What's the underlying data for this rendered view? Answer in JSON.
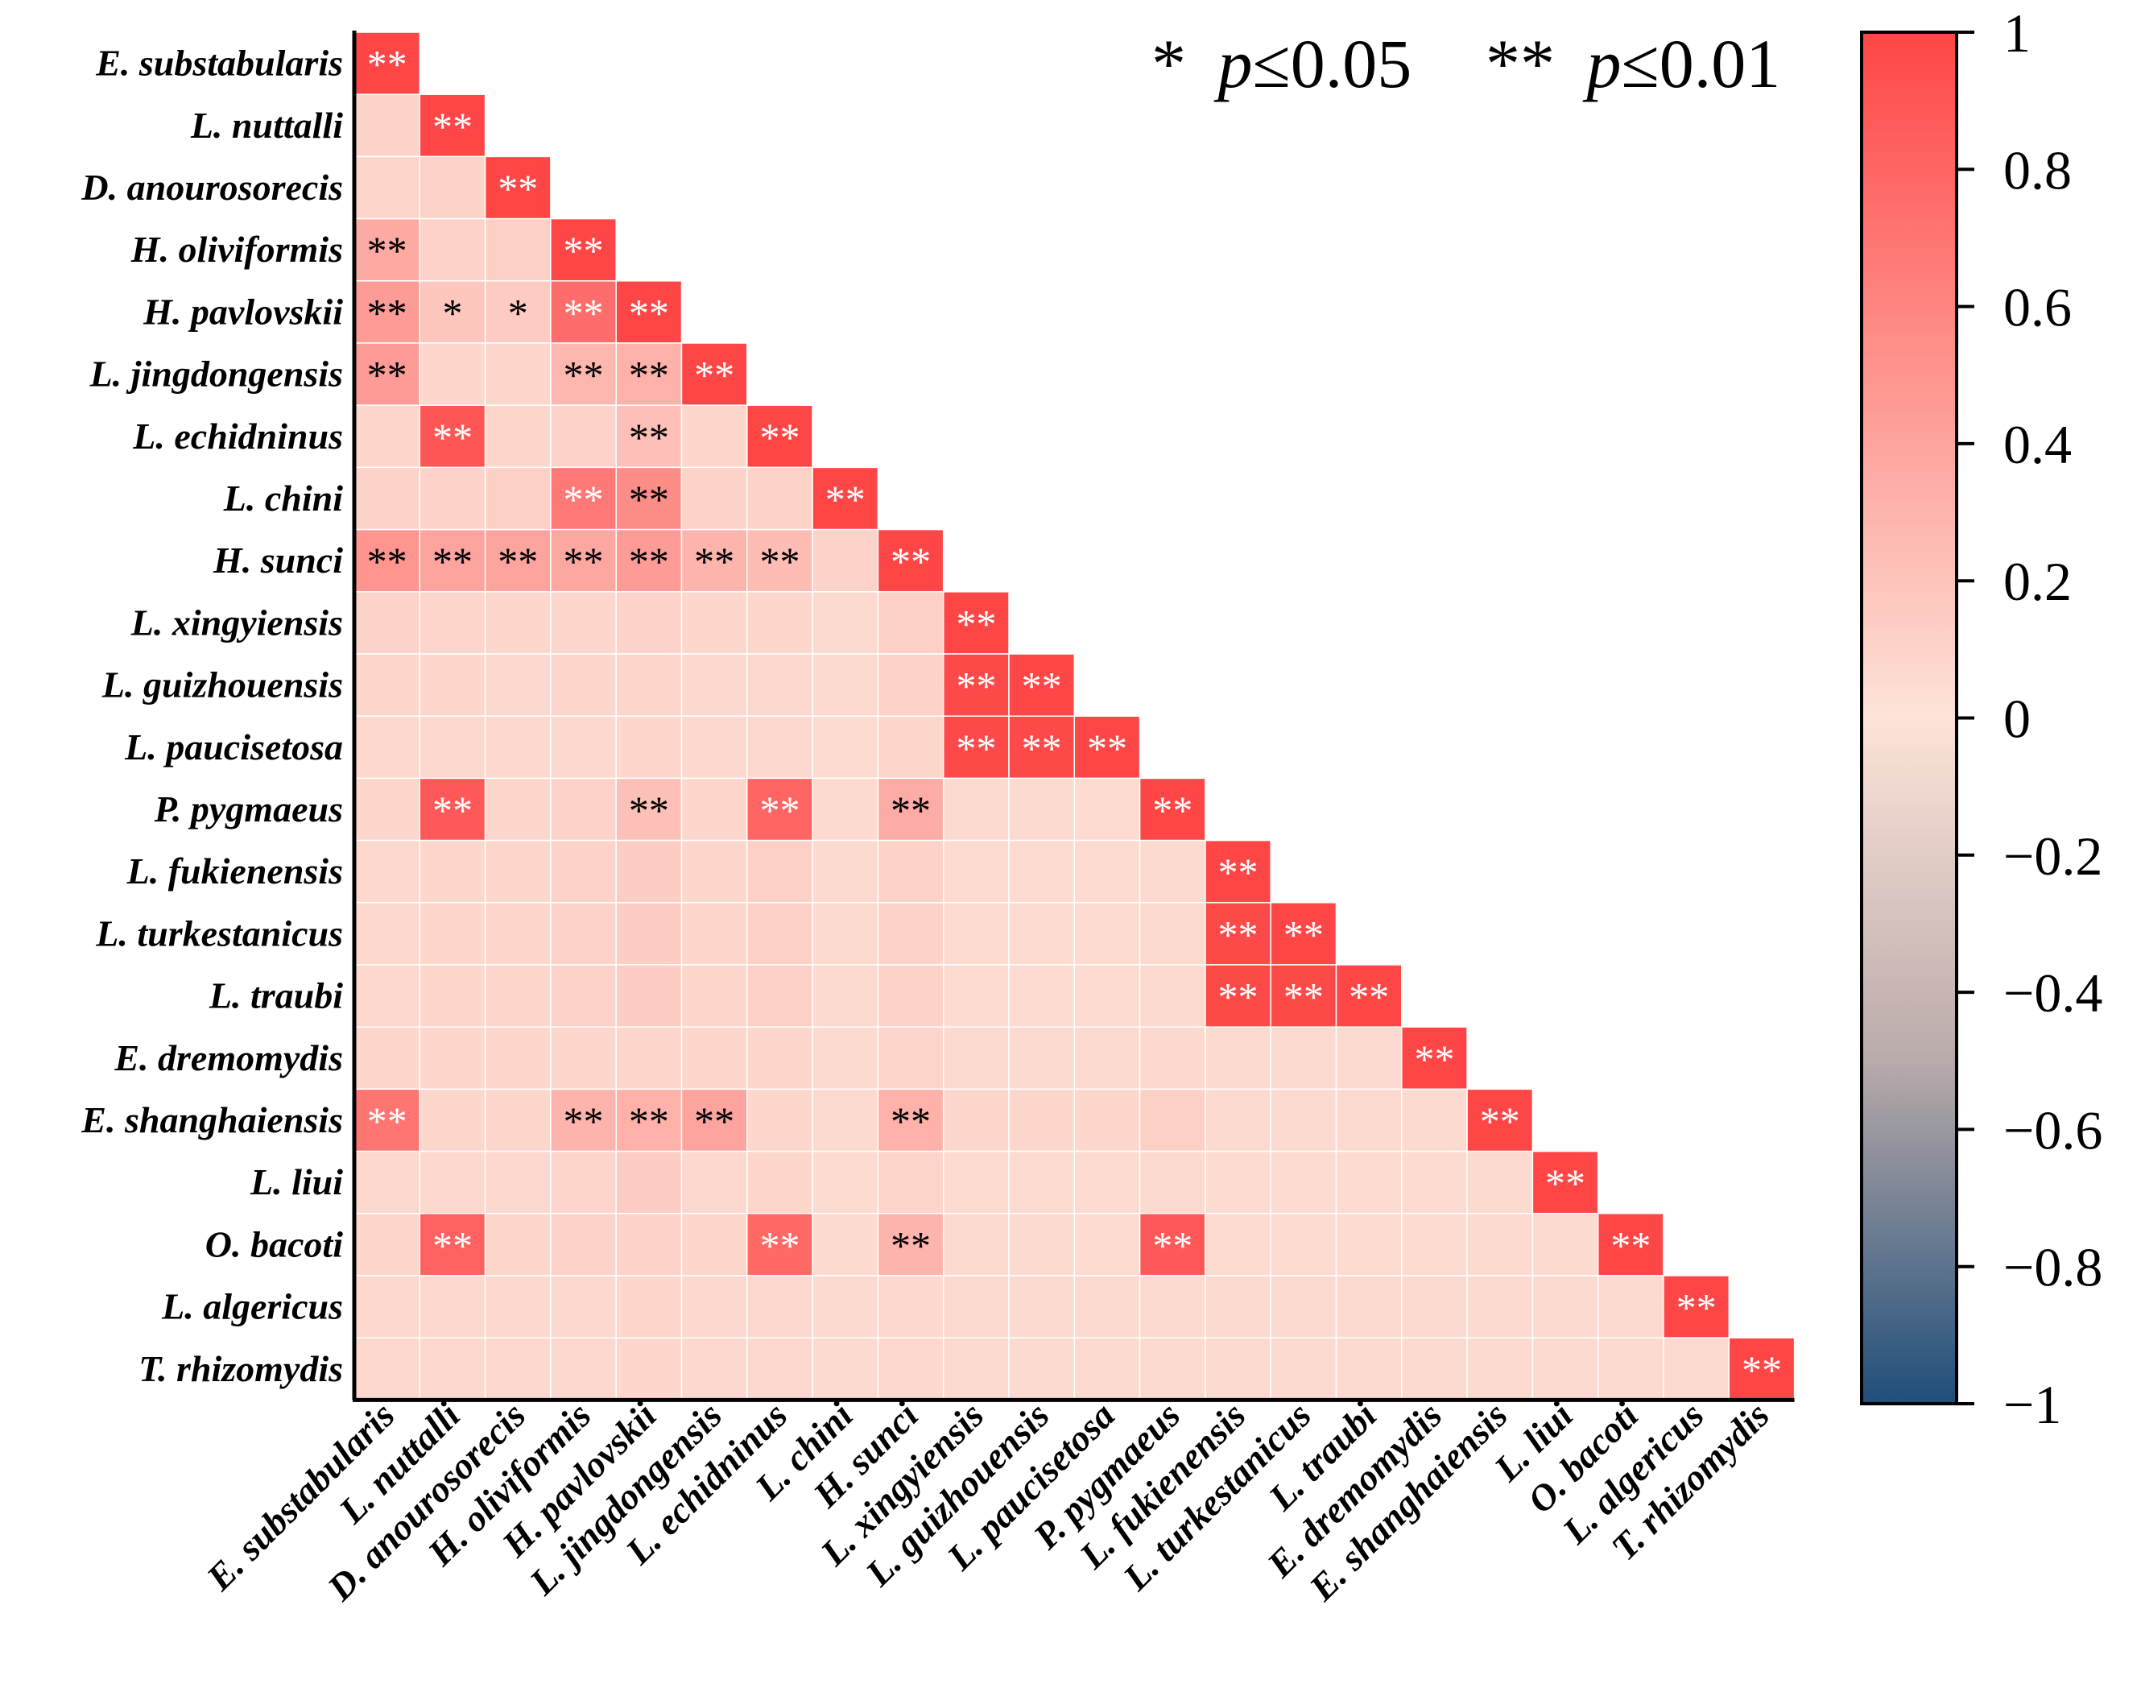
{
  "chart_data": {
    "type": "heatmap",
    "shape": "lower-triangle",
    "title": "",
    "labels": [
      "E. substabularis",
      "L. nuttalli",
      "D. anourosorecis",
      "H. oliviformis",
      "H. pavlovskii",
      "L. jingdongensis",
      "L. echidninus",
      "L. chini",
      "H. sunci",
      "L. xingyiensis",
      "L. guizhouensis",
      "L. paucisetosa",
      "P. pygmaeus",
      "L. fukienensis",
      "L. turkestanicus",
      "L. traubi",
      "E. dremomydis",
      "E. shanghaiensis",
      "L. liui",
      "O. bacoti",
      "L. algericus",
      "T. rhizomydis"
    ],
    "matrix": [
      [
        1.0
      ],
      [
        0.1,
        1.0
      ],
      [
        0.09,
        0.1,
        1.0
      ],
      [
        0.36,
        0.1,
        0.12,
        1.0
      ],
      [
        0.45,
        0.18,
        0.15,
        0.75,
        1.0
      ],
      [
        0.45,
        0.08,
        0.08,
        0.28,
        0.32,
        1.0
      ],
      [
        0.08,
        0.9,
        0.08,
        0.1,
        0.22,
        0.08,
        1.0
      ],
      [
        0.1,
        0.1,
        0.12,
        0.68,
        0.55,
        0.1,
        0.1,
        1.0
      ],
      [
        0.5,
        0.4,
        0.4,
        0.38,
        0.45,
        0.3,
        0.25,
        0.1,
        1.0
      ],
      [
        0.1,
        0.09,
        0.08,
        0.08,
        0.1,
        0.08,
        0.08,
        0.06,
        0.12,
        1.0
      ],
      [
        0.08,
        0.08,
        0.07,
        0.08,
        0.09,
        0.07,
        0.07,
        0.06,
        0.1,
        0.98,
        1.0
      ],
      [
        0.07,
        0.07,
        0.07,
        0.07,
        0.08,
        0.07,
        0.07,
        0.05,
        0.08,
        0.98,
        0.98,
        1.0
      ],
      [
        0.08,
        0.88,
        0.08,
        0.1,
        0.22,
        0.08,
        0.8,
        0.06,
        0.35,
        0.06,
        0.06,
        0.05,
        1.0
      ],
      [
        0.07,
        0.08,
        0.08,
        0.1,
        0.14,
        0.08,
        0.12,
        0.06,
        0.1,
        0.05,
        0.05,
        0.05,
        0.06,
        1.0
      ],
      [
        0.07,
        0.08,
        0.08,
        0.1,
        0.14,
        0.08,
        0.12,
        0.06,
        0.1,
        0.05,
        0.05,
        0.05,
        0.06,
        0.98,
        1.0
      ],
      [
        0.07,
        0.08,
        0.08,
        0.1,
        0.14,
        0.08,
        0.12,
        0.06,
        0.1,
        0.05,
        0.05,
        0.05,
        0.06,
        0.98,
        0.98,
        1.0
      ],
      [
        0.08,
        0.08,
        0.08,
        0.08,
        0.09,
        0.08,
        0.08,
        0.06,
        0.09,
        0.06,
        0.06,
        0.06,
        0.07,
        0.06,
        0.06,
        0.06,
        1.0
      ],
      [
        0.7,
        0.08,
        0.08,
        0.3,
        0.32,
        0.4,
        0.08,
        0.06,
        0.32,
        0.08,
        0.08,
        0.08,
        0.12,
        0.06,
        0.06,
        0.06,
        0.06,
        1.0
      ],
      [
        0.07,
        0.07,
        0.07,
        0.09,
        0.14,
        0.07,
        0.08,
        0.05,
        0.09,
        0.05,
        0.05,
        0.05,
        0.06,
        0.05,
        0.05,
        0.05,
        0.05,
        0.06,
        1.0
      ],
      [
        0.08,
        0.82,
        0.08,
        0.1,
        0.1,
        0.08,
        0.78,
        0.06,
        0.3,
        0.06,
        0.06,
        0.05,
        0.88,
        0.05,
        0.05,
        0.05,
        0.05,
        0.06,
        0.06,
        1.0
      ],
      [
        0.07,
        0.07,
        0.07,
        0.07,
        0.08,
        0.07,
        0.07,
        0.06,
        0.07,
        0.06,
        0.06,
        0.06,
        0.06,
        0.06,
        0.06,
        0.06,
        0.06,
        0.06,
        0.06,
        0.06,
        1.0
      ],
      [
        0.07,
        0.07,
        0.07,
        0.07,
        0.08,
        0.07,
        0.07,
        0.06,
        0.07,
        0.06,
        0.06,
        0.06,
        0.06,
        0.06,
        0.06,
        0.06,
        0.06,
        0.06,
        0.06,
        0.06,
        0.06,
        1.0
      ]
    ],
    "significance": [
      [
        "**"
      ],
      [
        "",
        "**"
      ],
      [
        "",
        "",
        "**"
      ],
      [
        "**",
        "",
        "",
        "**"
      ],
      [
        "**",
        "*",
        "*",
        "**",
        "**"
      ],
      [
        "**",
        "",
        "",
        "**",
        "**",
        "**"
      ],
      [
        "",
        "**",
        "",
        "",
        "**",
        "",
        "**"
      ],
      [
        "",
        "",
        "",
        "**",
        "**",
        "",
        "",
        "**"
      ],
      [
        "**",
        "**",
        "**",
        "**",
        "**",
        "**",
        "**",
        "",
        "**"
      ],
      [
        "",
        "",
        "",
        "",
        "",
        "",
        "",
        "",
        "",
        "**"
      ],
      [
        "",
        "",
        "",
        "",
        "",
        "",
        "",
        "",
        "",
        "**",
        "**"
      ],
      [
        "",
        "",
        "",
        "",
        "",
        "",
        "",
        "",
        "",
        "**",
        "**",
        "**"
      ],
      [
        "",
        "**",
        "",
        "",
        "**",
        "",
        "**",
        "",
        "**",
        "",
        "",
        "",
        "**"
      ],
      [
        "",
        "",
        "",
        "",
        "",
        "",
        "",
        "",
        "",
        "",
        "",
        "",
        "",
        "**"
      ],
      [
        "",
        "",
        "",
        "",
        "",
        "",
        "",
        "",
        "",
        "",
        "",
        "",
        "",
        "**",
        "**"
      ],
      [
        "",
        "",
        "",
        "",
        "",
        "",
        "",
        "",
        "",
        "",
        "",
        "",
        "",
        "**",
        "**",
        "**"
      ],
      [
        "",
        "",
        "",
        "",
        "",
        "",
        "",
        "",
        "",
        "",
        "",
        "",
        "",
        "",
        "",
        "",
        "**"
      ],
      [
        "**",
        "",
        "",
        "**",
        "**",
        "**",
        "",
        "",
        "**",
        "",
        "",
        "",
        "",
        "",
        "",
        "",
        "",
        "**"
      ],
      [
        "",
        "",
        "",
        "",
        "",
        "",
        "",
        "",
        "",
        "",
        "",
        "",
        "",
        "",
        "",
        "",
        "",
        "",
        "**"
      ],
      [
        "",
        "**",
        "",
        "",
        "",
        "",
        "**",
        "",
        "**",
        "",
        "",
        "",
        "**",
        "",
        "",
        "",
        "",
        "",
        "",
        "**"
      ],
      [
        "",
        "",
        "",
        "",
        "",
        "",
        "",
        "",
        "",
        "",
        "",
        "",
        "",
        "",
        "",
        "",
        "",
        "",
        "",
        "",
        "**"
      ],
      [
        "",
        "",
        "",
        "",
        "",
        "",
        "",
        "",
        "",
        "",
        "",
        "",
        "",
        "",
        "",
        "",
        "",
        "",
        "",
        "",
        "",
        "**"
      ]
    ],
    "colorbar": {
      "range": [
        -1,
        1
      ],
      "ticks": [
        1,
        0.8,
        0.6,
        0.4,
        0.2,
        0,
        -0.2,
        -0.4,
        -0.6,
        -0.8,
        -1
      ],
      "tick_labels": [
        "1",
        "0.8",
        "0.6",
        "0.4",
        "0.2",
        "0",
        "−0.2",
        "−0.4",
        "−0.6",
        "−0.8",
        "−1"
      ],
      "colors": {
        "neg": "#1f4e79",
        "mid_low": "#b9aaaa",
        "zero": "#fde3d8",
        "pos": "#fe4646"
      }
    },
    "significance_legend": {
      "single_star": "*",
      "single_text": "p≤0.05",
      "double_star": "**",
      "double_text": "p≤0.01",
      "p_symbol": "p",
      "single_value": "≤0.05",
      "double_value": "≤0.01"
    },
    "star_colors": {
      "strong": "#ffffff",
      "weak": "#000000"
    }
  }
}
